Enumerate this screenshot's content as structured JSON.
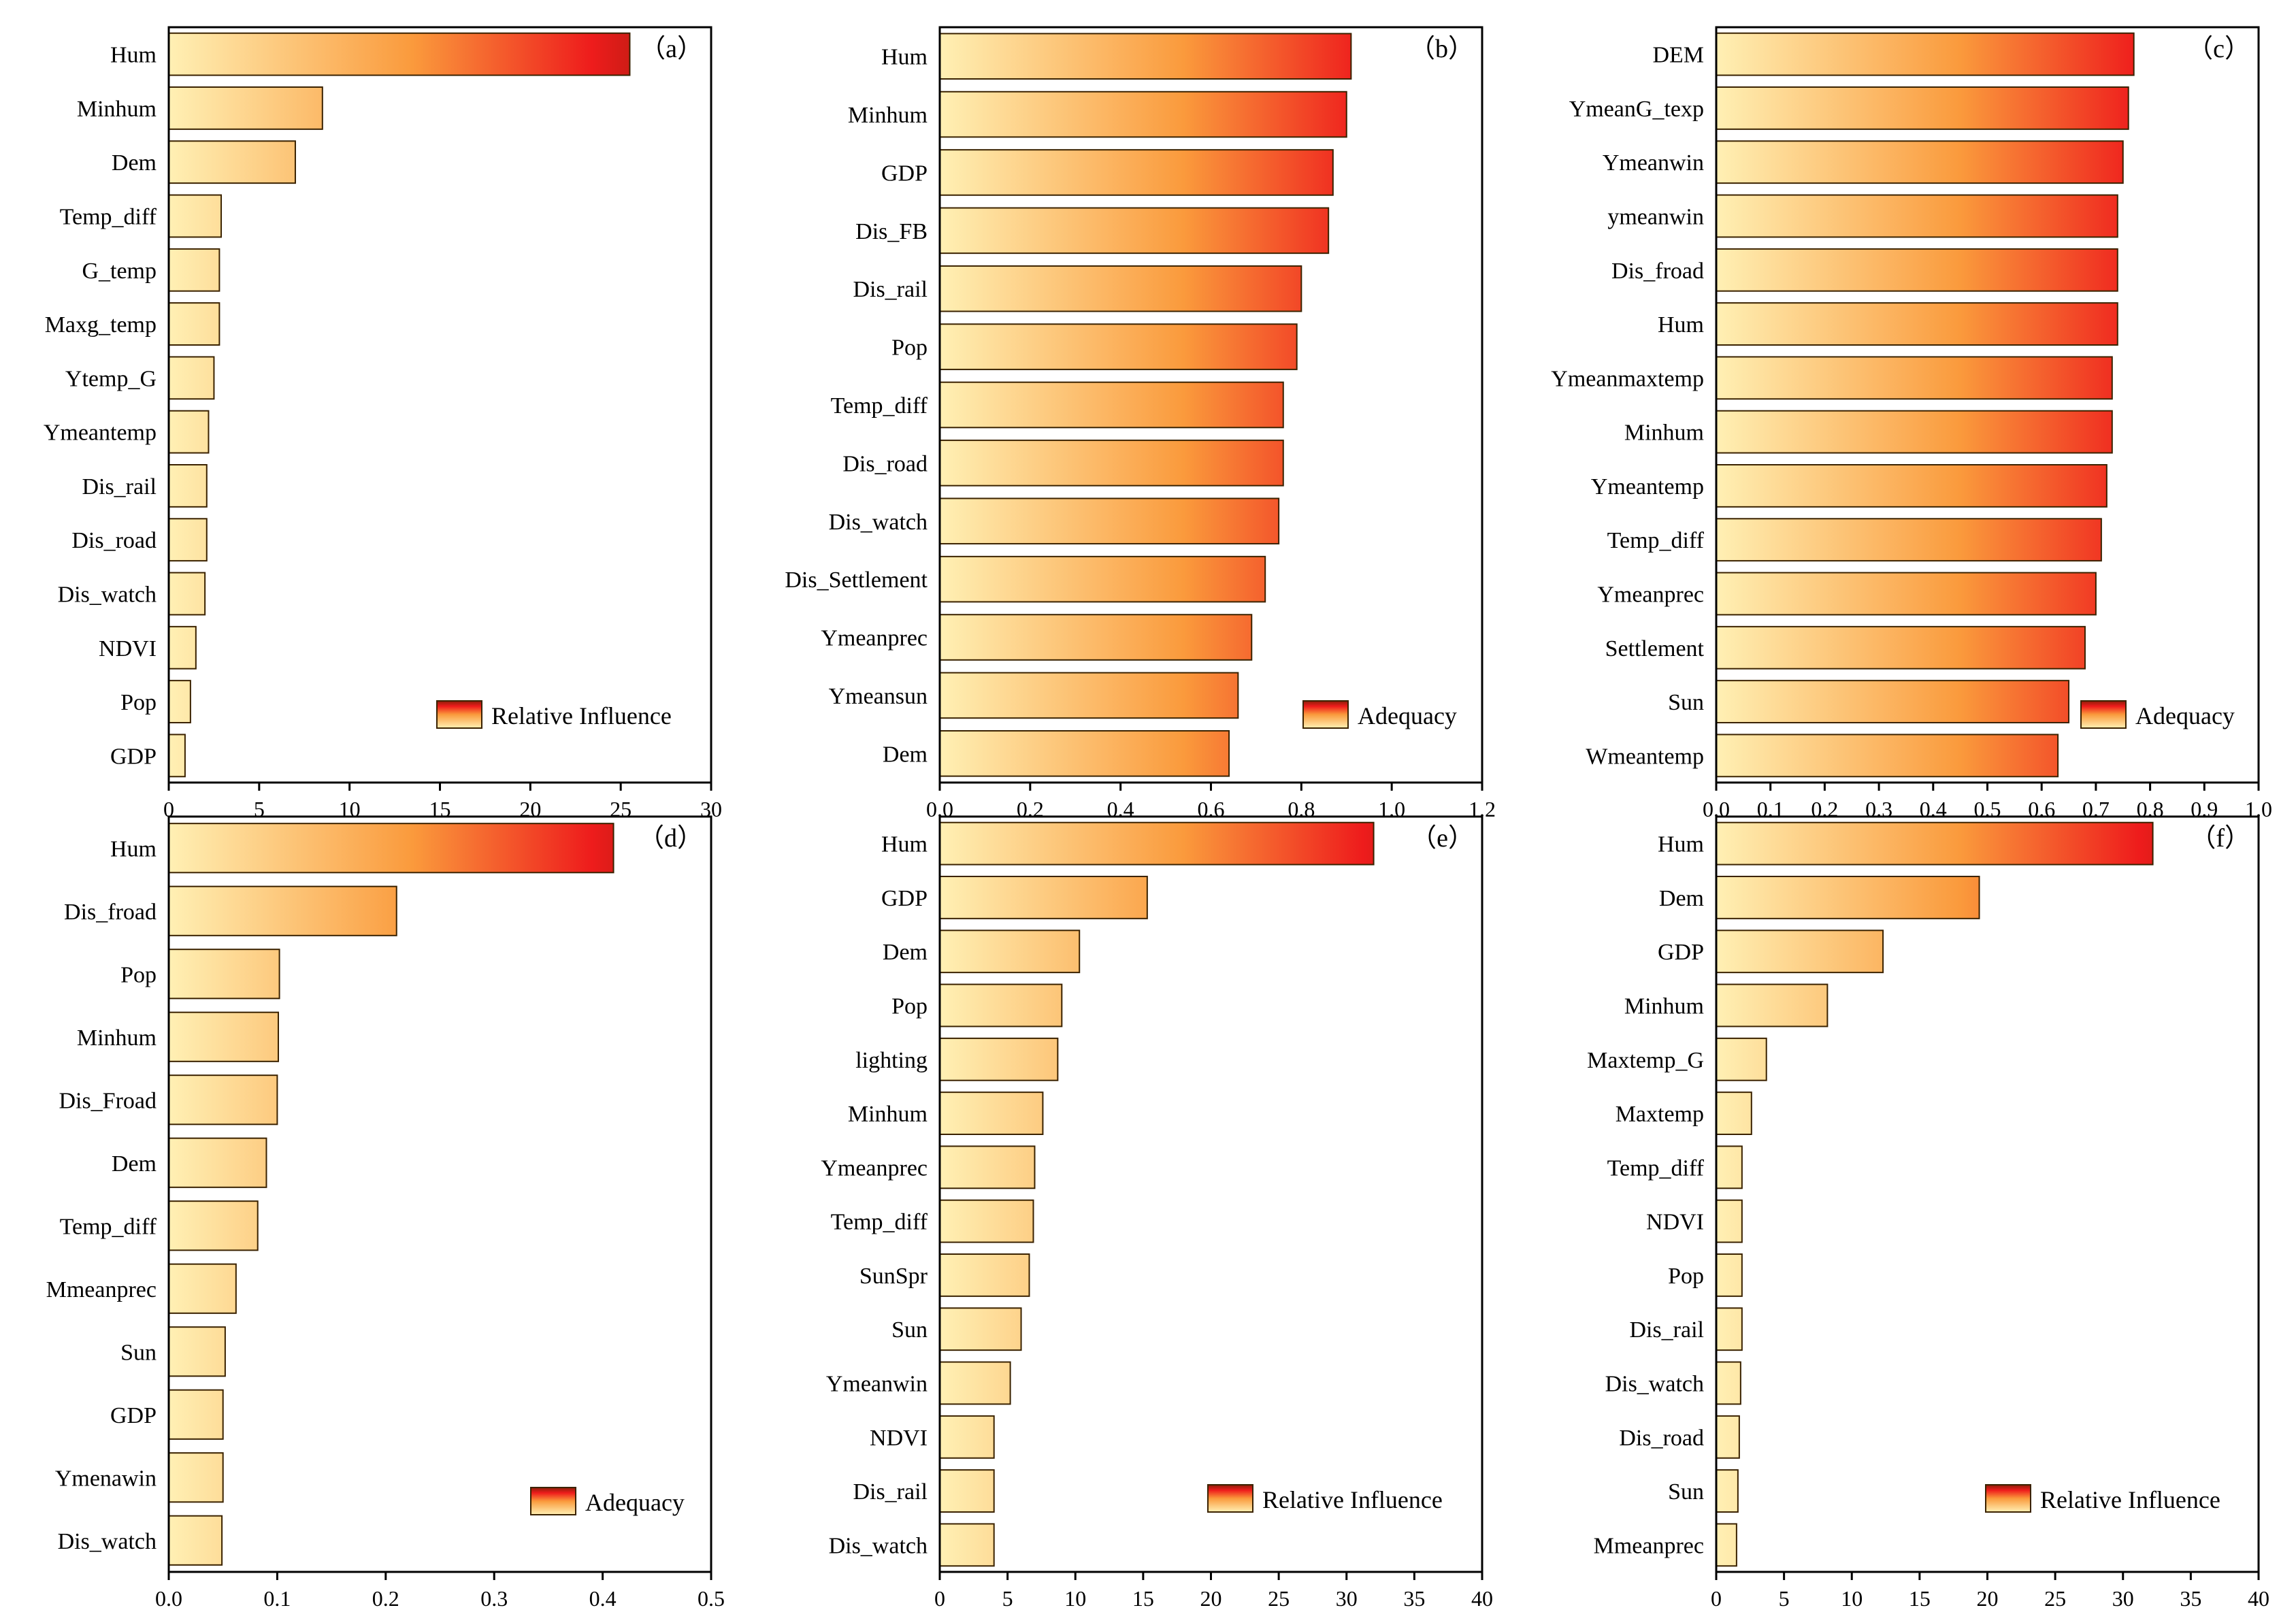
{
  "colors": {
    "bar_start": "#fff0b4",
    "bar_mid": "#fa9a3c",
    "bar_hot": "#ee1c1c",
    "bar_end": "#8b1e08",
    "axis": "#000000",
    "bar_outline": "#3a2200"
  },
  "chart_data": [
    {
      "type": "bar",
      "orientation": "horizontal",
      "panel_label": "（a）",
      "legend_label": "Relative Influence",
      "legend_position": "bottom-right",
      "grid": false,
      "categories": [
        "Hum",
        "Minhum",
        "Dem",
        "Temp_diff",
        "G_temp",
        "Maxg_temp",
        "Ytemp_G",
        "Ymeantemp",
        "Dis_rail",
        "Dis_road",
        "Dis_watch",
        "NDVI",
        "Pop",
        "GDP"
      ],
      "values": [
        25.5,
        8.5,
        7.0,
        2.9,
        2.8,
        2.8,
        2.5,
        2.2,
        2.1,
        2.1,
        2.0,
        1.5,
        1.2,
        0.9
      ],
      "xlim": [
        0,
        30
      ],
      "xticks": [
        "0",
        "5",
        "10",
        "15",
        "20",
        "25",
        "30"
      ]
    },
    {
      "type": "bar",
      "orientation": "horizontal",
      "panel_label": "（b）",
      "legend_label": "Adequacy",
      "legend_position": "bottom-right",
      "grid": false,
      "categories": [
        "Hum",
        "Minhum",
        "GDP",
        "Dis_FB",
        "Dis_rail",
        "Pop",
        "Temp_diff",
        "Dis_road",
        "Dis_watch",
        "Dis_Settlement",
        "Ymeanprec",
        "Ymeansun",
        "Dem"
      ],
      "values": [
        0.91,
        0.9,
        0.87,
        0.86,
        0.8,
        0.79,
        0.76,
        0.76,
        0.75,
        0.72,
        0.69,
        0.66,
        0.64
      ],
      "xlim": [
        0,
        1.2
      ],
      "xticks": [
        "0.0",
        "0.2",
        "0.4",
        "0.6",
        "0.8",
        "1.0",
        "1.2"
      ]
    },
    {
      "type": "bar",
      "orientation": "horizontal",
      "panel_label": "（c）",
      "legend_label": "Adequacy",
      "legend_position": "bottom-right",
      "grid": false,
      "categories": [
        "DEM",
        "YmeanG_texp",
        "Ymeanwin",
        "ymeanwin",
        "Dis_froad",
        "Hum",
        "Ymeanmaxtemp",
        "Minhum",
        "Ymeantemp",
        "Temp_diff",
        "Ymeanprec",
        "Settlement",
        "Sun",
        "Wmeantemp"
      ],
      "values": [
        0.77,
        0.76,
        0.75,
        0.74,
        0.74,
        0.74,
        0.73,
        0.73,
        0.72,
        0.71,
        0.7,
        0.68,
        0.65,
        0.63
      ],
      "xlim": [
        0,
        1.0
      ],
      "xticks": [
        "0.0",
        "0.1",
        "0.2",
        "0.3",
        "0.4",
        "0.5",
        "0.6",
        "0.7",
        "0.8",
        "0.9",
        "1.0"
      ]
    },
    {
      "type": "bar",
      "orientation": "horizontal",
      "panel_label": "（d）",
      "legend_label": "Adequacy",
      "legend_position": "bottom-right",
      "grid": false,
      "categories": [
        "Hum",
        "Dis_froad",
        "Pop",
        "Minhum",
        "Dis_Froad",
        "Dem",
        "Temp_diff",
        "Mmeanprec",
        "Sun",
        "GDP",
        "Ymenawin",
        "Dis_watch"
      ],
      "values": [
        0.41,
        0.21,
        0.102,
        0.101,
        0.1,
        0.09,
        0.082,
        0.062,
        0.052,
        0.05,
        0.05,
        0.049
      ],
      "xlim": [
        0,
        0.5
      ],
      "xticks": [
        "0.0",
        "0.1",
        "0.2",
        "0.3",
        "0.4",
        "0.5"
      ]
    },
    {
      "type": "bar",
      "orientation": "horizontal",
      "panel_label": "（e）",
      "legend_label": "Relative Influence",
      "legend_position": "bottom-right",
      "grid": false,
      "categories": [
        "Hum",
        "GDP",
        "Dem",
        "Pop",
        "lighting",
        "Minhum",
        "Ymeanprec",
        "Temp_diff",
        "SunSpr",
        "Sun",
        "Ymeanwin",
        "NDVI",
        "Dis_rail",
        "Dis_watch"
      ],
      "values": [
        32.0,
        15.3,
        10.3,
        9.0,
        8.7,
        7.6,
        7.0,
        6.9,
        6.6,
        6.0,
        5.2,
        4.0,
        4.0,
        4.0
      ],
      "xlim": [
        0,
        40
      ],
      "xticks": [
        "0",
        "5",
        "10",
        "15",
        "20",
        "25",
        "30",
        "35",
        "40"
      ]
    },
    {
      "type": "bar",
      "orientation": "horizontal",
      "panel_label": "（f）",
      "legend_label": "Relative Influence",
      "legend_position": "bottom-right",
      "grid": false,
      "categories": [
        "Hum",
        "Dem",
        "GDP",
        "Minhum",
        "Maxtemp_G",
        "Maxtemp",
        "Temp_diff",
        "NDVI",
        "Pop",
        "Dis_rail",
        "Dis_watch",
        "Dis_road",
        "Sun",
        "Mmeanprec"
      ],
      "values": [
        32.2,
        19.4,
        12.3,
        8.2,
        3.7,
        2.6,
        1.9,
        1.9,
        1.9,
        1.9,
        1.8,
        1.7,
        1.6,
        1.5
      ],
      "xlim": [
        0,
        40
      ],
      "xticks": [
        "0",
        "5",
        "10",
        "15",
        "20",
        "25",
        "30",
        "35",
        "40"
      ]
    }
  ]
}
